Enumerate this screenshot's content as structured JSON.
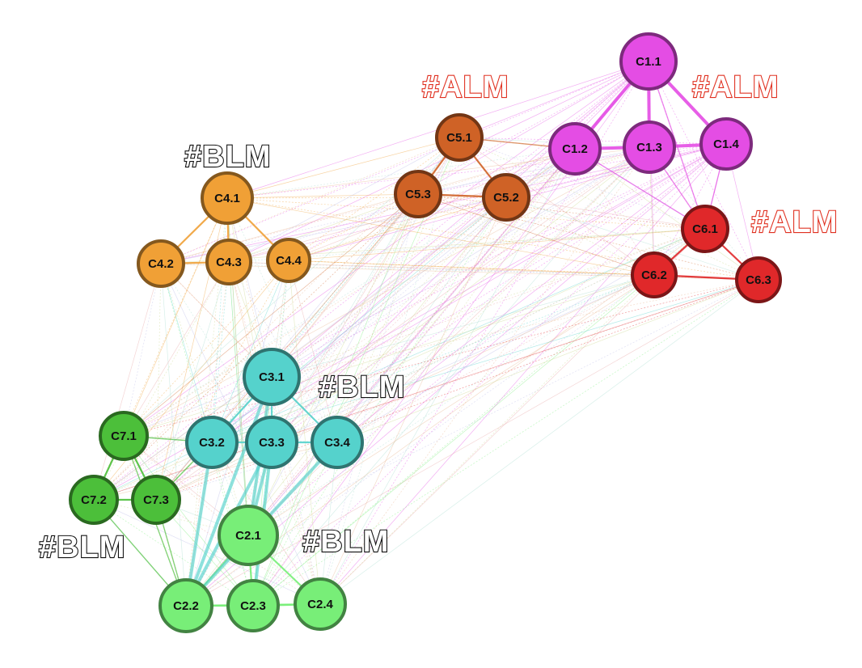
{
  "colors": {
    "C1": "#e44de4",
    "C2": "#78ee78",
    "C3": "#55d2cc",
    "C4": "#f0a036",
    "C5": "#cf6226",
    "C6": "#e0282a",
    "C7": "#4cbf3a"
  },
  "nodes": [
    {
      "id": "C1.1",
      "label": "C1.1",
      "group": "C1"
    },
    {
      "id": "C1.2",
      "label": "C1.2",
      "group": "C1"
    },
    {
      "id": "C1.3",
      "label": "C1.3",
      "group": "C1"
    },
    {
      "id": "C1.4",
      "label": "C1.4",
      "group": "C1"
    },
    {
      "id": "C2.1",
      "label": "C2.1",
      "group": "C2"
    },
    {
      "id": "C2.2",
      "label": "C2.2",
      "group": "C2"
    },
    {
      "id": "C2.3",
      "label": "C2.3",
      "group": "C2"
    },
    {
      "id": "C2.4",
      "label": "C2.4",
      "group": "C2"
    },
    {
      "id": "C3.1",
      "label": "C3.1",
      "group": "C3"
    },
    {
      "id": "C3.2",
      "label": "C3.2",
      "group": "C3"
    },
    {
      "id": "C3.3",
      "label": "C3.3",
      "group": "C3"
    },
    {
      "id": "C3.4",
      "label": "C3.4",
      "group": "C3"
    },
    {
      "id": "C4.1",
      "label": "C4.1",
      "group": "C4"
    },
    {
      "id": "C4.2",
      "label": "C4.2",
      "group": "C4"
    },
    {
      "id": "C4.3",
      "label": "C4.3",
      "group": "C4"
    },
    {
      "id": "C4.4",
      "label": "C4.4",
      "group": "C4"
    },
    {
      "id": "C5.1",
      "label": "C5.1",
      "group": "C5"
    },
    {
      "id": "C5.2",
      "label": "C5.2",
      "group": "C5"
    },
    {
      "id": "C5.3",
      "label": "C5.3",
      "group": "C5"
    },
    {
      "id": "C6.1",
      "label": "C6.1",
      "group": "C6"
    },
    {
      "id": "C6.2",
      "label": "C6.2",
      "group": "C6"
    },
    {
      "id": "C6.3",
      "label": "C6.3",
      "group": "C6"
    },
    {
      "id": "C7.1",
      "label": "C7.1",
      "group": "C7"
    },
    {
      "id": "C7.2",
      "label": "C7.2",
      "group": "C7"
    },
    {
      "id": "C7.3",
      "label": "C7.3",
      "group": "C7"
    }
  ],
  "strong_edges": [
    [
      "C1.1",
      "C1.2"
    ],
    [
      "C1.1",
      "C1.3"
    ],
    [
      "C1.1",
      "C1.4"
    ],
    [
      "C1.2",
      "C1.3"
    ],
    [
      "C1.3",
      "C1.4"
    ],
    [
      "C1.2",
      "C6.1"
    ],
    [
      "C1.3",
      "C6.1"
    ],
    [
      "C1.4",
      "C6.1"
    ],
    [
      "C1.1",
      "C6.1"
    ],
    [
      "C6.1",
      "C6.2"
    ],
    [
      "C6.1",
      "C6.3"
    ],
    [
      "C6.2",
      "C6.3"
    ],
    [
      "C5.1",
      "C5.2"
    ],
    [
      "C5.1",
      "C5.3"
    ],
    [
      "C5.3",
      "C5.2"
    ],
    [
      "C5.1",
      "C1.2"
    ],
    [
      "C4.1",
      "C4.2"
    ],
    [
      "C4.1",
      "C4.3"
    ],
    [
      "C4.1",
      "C4.4"
    ],
    [
      "C4.2",
      "C4.3"
    ],
    [
      "C3.1",
      "C3.2"
    ],
    [
      "C3.1",
      "C3.3"
    ],
    [
      "C3.1",
      "C3.4"
    ],
    [
      "C3.2",
      "C3.3"
    ],
    [
      "C3.3",
      "C3.4"
    ],
    [
      "C3.1",
      "C2.1"
    ],
    [
      "C3.3",
      "C2.1"
    ],
    [
      "C3.2",
      "C2.2"
    ],
    [
      "C3.3",
      "C2.2"
    ],
    [
      "C3.1",
      "C2.2"
    ],
    [
      "C2.1",
      "C2.2"
    ],
    [
      "C2.1",
      "C2.3"
    ],
    [
      "C2.1",
      "C2.4"
    ],
    [
      "C2.2",
      "C2.3"
    ],
    [
      "C2.3",
      "C2.4"
    ],
    [
      "C2.2",
      "C2.4"
    ],
    [
      "C3.4",
      "C2.2"
    ],
    [
      "C3.3",
      "C2.3"
    ],
    [
      "C7.1",
      "C7.2"
    ],
    [
      "C7.1",
      "C7.3"
    ],
    [
      "C7.2",
      "C7.3"
    ],
    [
      "C7.1",
      "C3.2"
    ],
    [
      "C7.2",
      "C2.2"
    ],
    [
      "C7.3",
      "C2.2"
    ],
    [
      "C7.1",
      "C2.2"
    ],
    [
      "C7.3",
      "C3.2"
    ]
  ],
  "tags": [
    {
      "text": "#ALM",
      "style": "alm"
    },
    {
      "text": "#ALM",
      "style": "alm"
    },
    {
      "text": "#ALM",
      "style": "alm"
    },
    {
      "text": "#BLM",
      "style": "blm"
    },
    {
      "text": "#BLM",
      "style": "blm"
    },
    {
      "text": "#BLM",
      "style": "blm"
    },
    {
      "text": "#BLM",
      "style": "blm"
    }
  ]
}
